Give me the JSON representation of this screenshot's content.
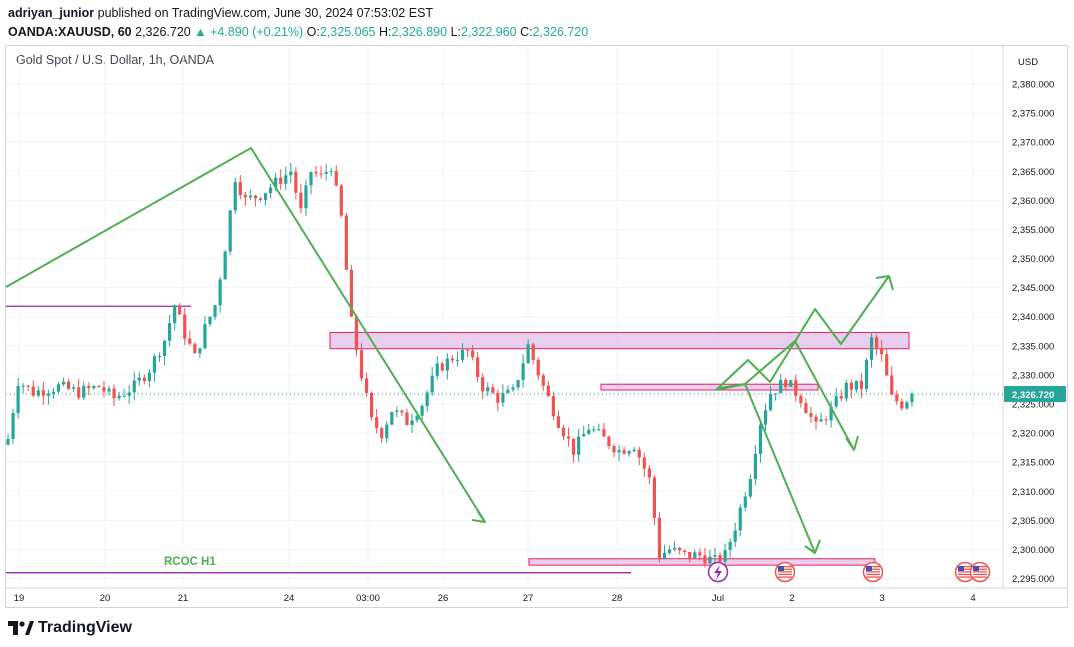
{
  "header": {
    "author": "adriyan_junior",
    "published_text": "published on TradingView.com, June 30, 2024 07:53:02 EST",
    "symbol": "OANDA:XAUUSD, 60",
    "last": "2,326.720",
    "change": "▲ +4.890 (+0.21%)",
    "o_label": "O:",
    "o_value": "2,325.065",
    "h_label": "H:",
    "h_value": "2,326.890",
    "l_label": "L:",
    "l_value": "2,322.960",
    "c_label": "C:",
    "c_value": "2,326.720"
  },
  "legend": "Gold Spot / U.S. Dollar, 1h, OANDA",
  "currency": "USD",
  "price_tag": "2,326.720",
  "annotation_label": "RCOC H1",
  "footer_brand": "TradingView",
  "colors": {
    "up": "#26a69a",
    "down": "#ef5350",
    "projection": "#4caf50",
    "zone_fill": "#e1bee7",
    "zone_stroke": "#e91e63",
    "support_line": "#9c27b0"
  },
  "chart_data": {
    "type": "candlestick",
    "title": "Gold Spot / U.S. Dollar, 1h, OANDA",
    "ylabel": "USD",
    "ylim": [
      2294,
      2384
    ],
    "y_ticks": [
      "2,380.000",
      "2,375.000",
      "2,370.000",
      "2,365.000",
      "2,360.000",
      "2,355.000",
      "2,350.000",
      "2,345.000",
      "2,340.000",
      "2,335.000",
      "2,330.000",
      "2,325.000",
      "2,320.000",
      "2,315.000",
      "2,310.000",
      "2,305.000",
      "2,300.000",
      "2,295.000"
    ],
    "x_ticks": [
      "19",
      "20",
      "21",
      "24",
      "03:00",
      "26",
      "27",
      "28",
      "Jul",
      "2",
      "3",
      "4"
    ],
    "last_price": 2326.72,
    "close_path": [
      [
        0,
        2319
      ],
      [
        2,
        2329
      ],
      [
        5,
        2327
      ],
      [
        10,
        2328
      ],
      [
        14,
        2327
      ],
      [
        18,
        2328
      ],
      [
        21,
        2326
      ],
      [
        25,
        2328
      ],
      [
        28,
        2331
      ],
      [
        31,
        2336
      ],
      [
        33,
        2342
      ],
      [
        35,
        2337
      ],
      [
        37,
        2333
      ],
      [
        39,
        2338
      ],
      [
        41,
        2342
      ],
      [
        43,
        2352
      ],
      [
        45,
        2364
      ],
      [
        47,
        2360
      ],
      [
        50,
        2361
      ],
      [
        53,
        2363
      ],
      [
        56,
        2365
      ],
      [
        58,
        2358
      ],
      [
        60,
        2365
      ],
      [
        62,
        2364
      ],
      [
        64,
        2366
      ],
      [
        66,
        2357
      ],
      [
        68,
        2339
      ],
      [
        70,
        2330
      ],
      [
        72,
        2322
      ],
      [
        74,
        2320
      ],
      [
        76,
        2324
      ],
      [
        79,
        2322
      ],
      [
        82,
        2325
      ],
      [
        85,
        2331
      ],
      [
        88,
        2333
      ],
      [
        91,
        2334
      ],
      [
        94,
        2328
      ],
      [
        97,
        2326
      ],
      [
        100,
        2327
      ],
      [
        103,
        2335
      ],
      [
        106,
        2328
      ],
      [
        109,
        2322
      ],
      [
        112,
        2317
      ],
      [
        115,
        2321
      ],
      [
        118,
        2319
      ],
      [
        121,
        2317
      ],
      [
        124,
        2318
      ],
      [
        127,
        2312
      ],
      [
        129,
        2299
      ],
      [
        131,
        2300
      ],
      [
        134,
        2299
      ],
      [
        137,
        2299
      ],
      [
        140,
        2298
      ],
      [
        142,
        2299
      ],
      [
        144,
        2304
      ],
      [
        147,
        2313
      ],
      [
        149,
        2322
      ],
      [
        151,
        2327
      ],
      [
        154,
        2329
      ],
      [
        157,
        2326
      ],
      [
        160,
        2321
      ],
      [
        163,
        2324
      ],
      [
        166,
        2328
      ],
      [
        169,
        2328
      ],
      [
        171,
        2336
      ],
      [
        173,
        2333
      ],
      [
        175,
        2326
      ],
      [
        177,
        2325
      ],
      [
        179,
        2326.72
      ]
    ],
    "zones": [
      {
        "name": "resistance",
        "from": 2334.5,
        "to": 2337.3
      },
      {
        "name": "mid",
        "from": 2327.4,
        "to": 2328.4
      },
      {
        "name": "support",
        "from": 2297.3,
        "to": 2298.4
      }
    ],
    "support_levels": [
      2341.8,
      2296.0
    ]
  }
}
